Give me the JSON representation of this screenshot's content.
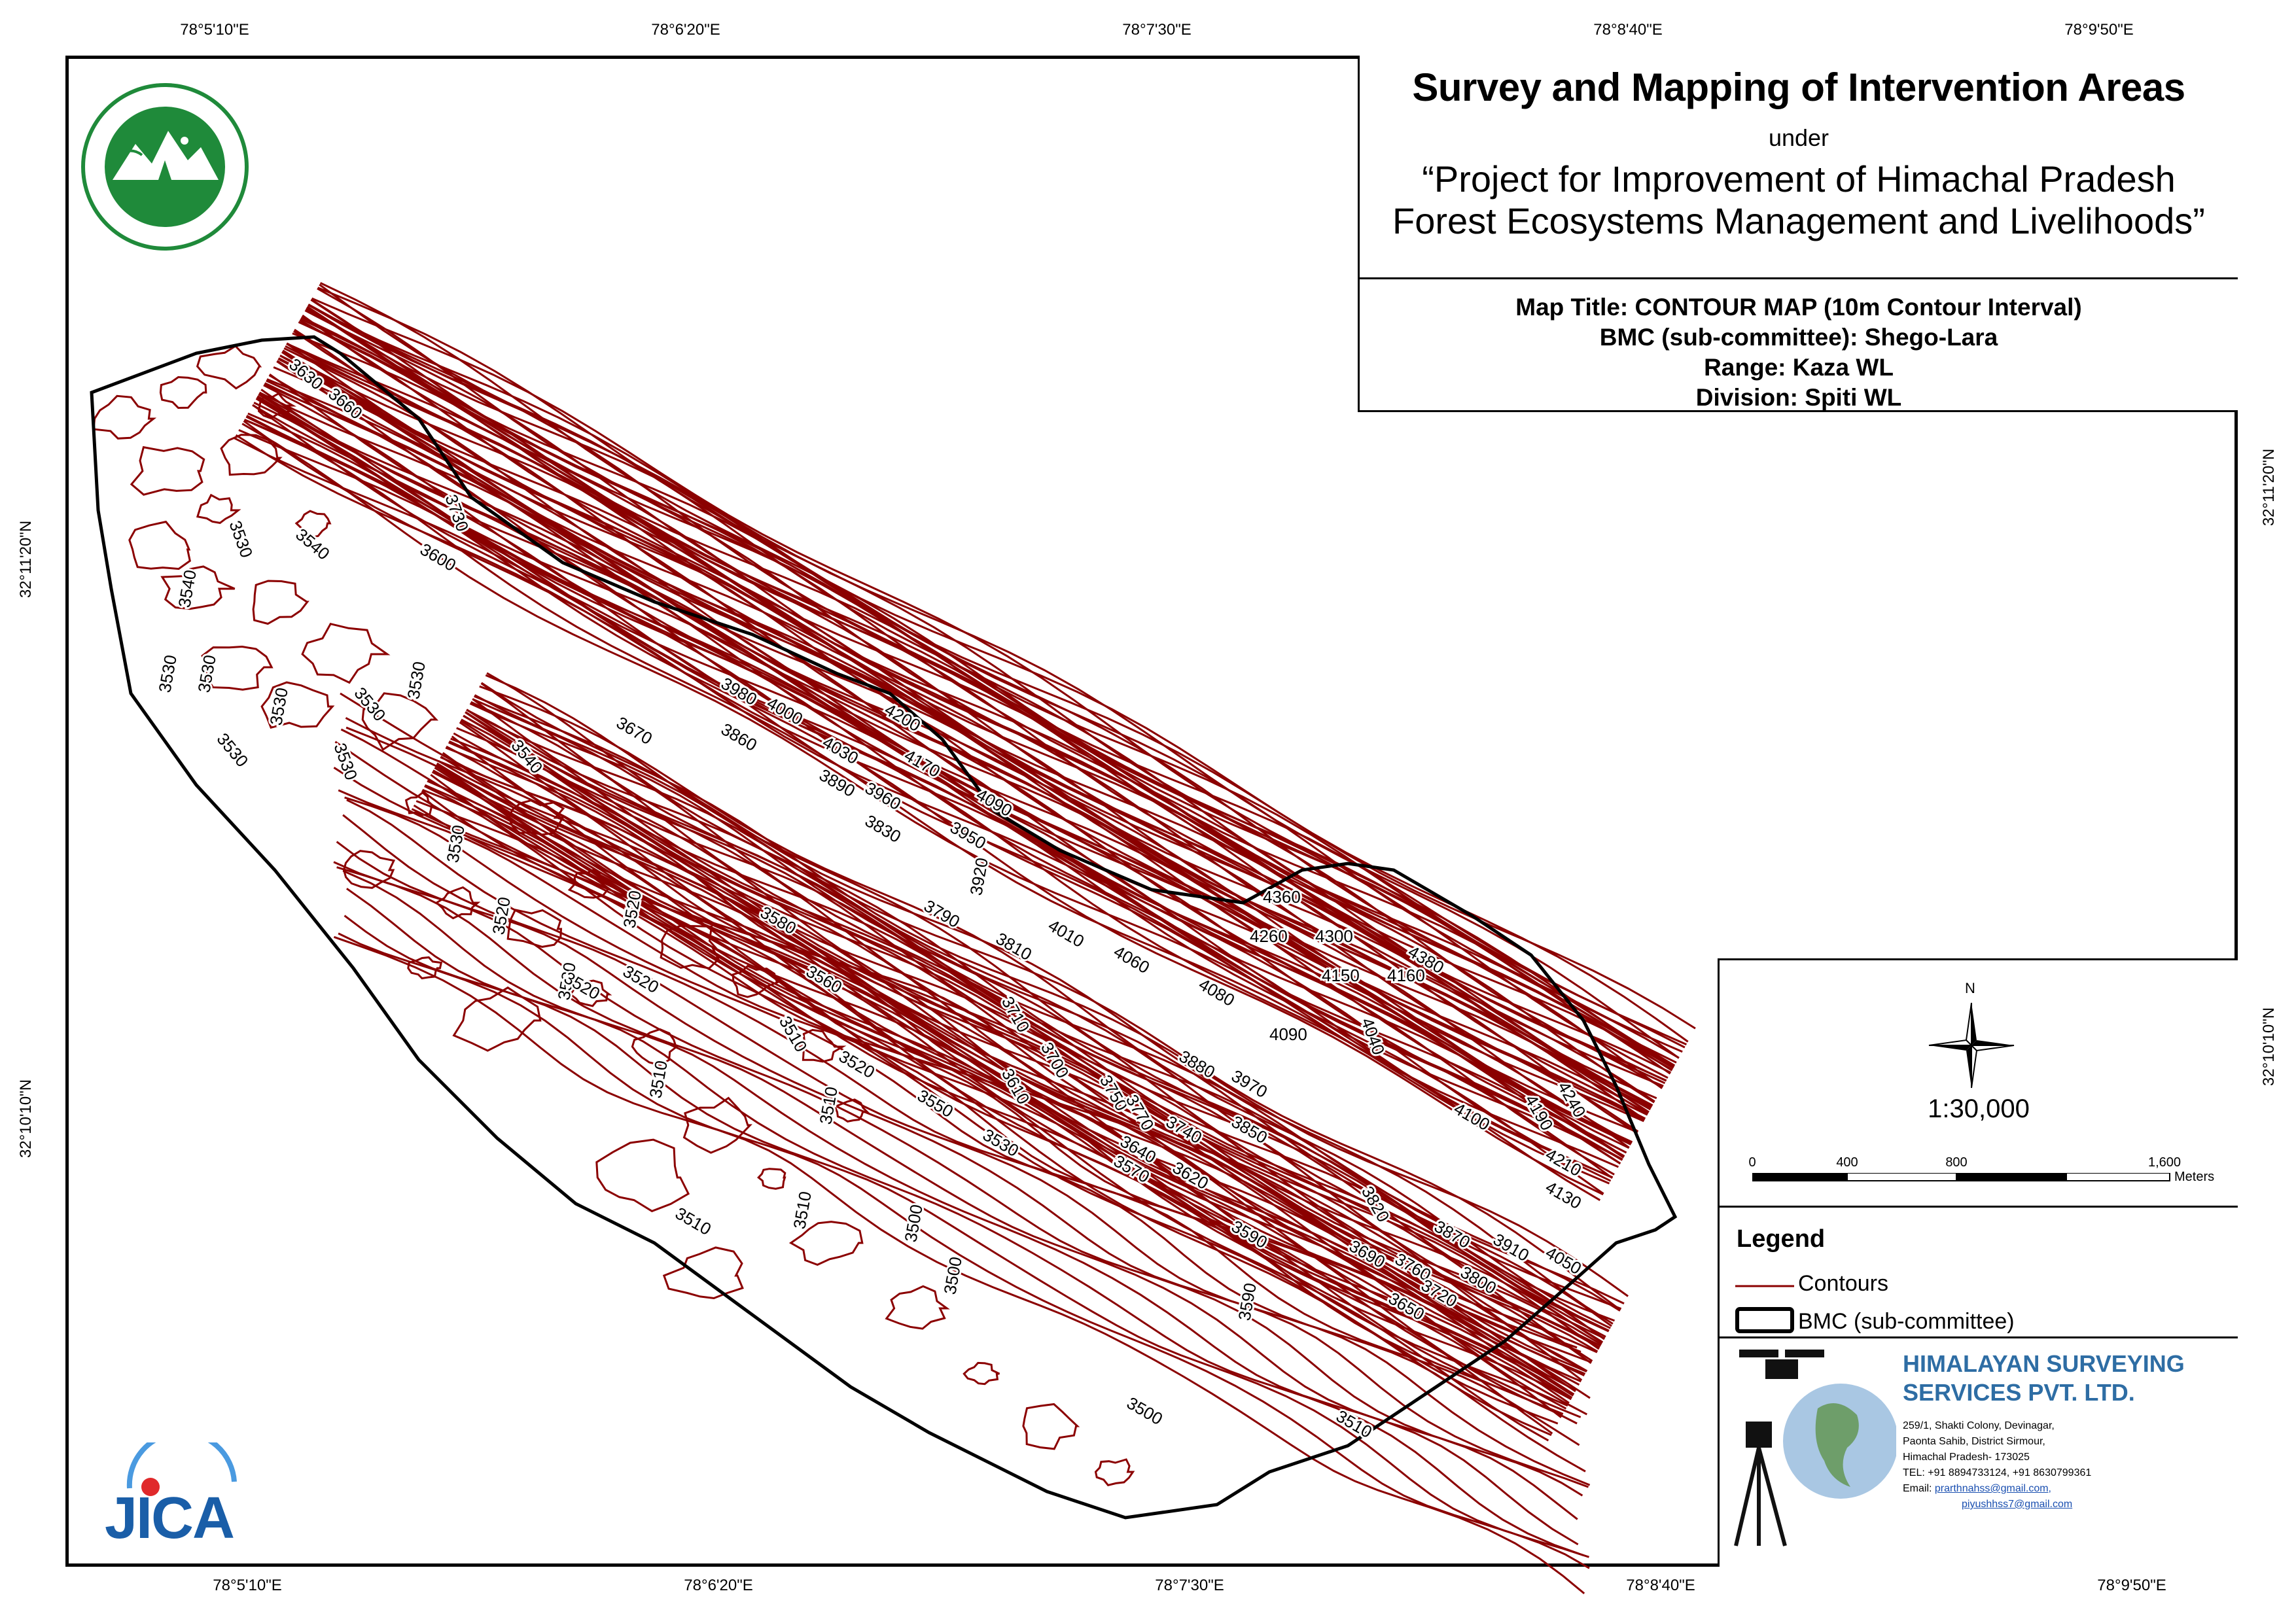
{
  "graticule": {
    "top": [
      "78°5'10\"E",
      "78°6'20\"E",
      "78°7'30\"E",
      "78°8'40\"E",
      "78°9'50\"E"
    ],
    "bottom": [
      "78°5'10\"E",
      "78°6'20\"E",
      "78°7'30\"E",
      "78°8'40\"E",
      "78°9'50\"E"
    ],
    "left": [
      "32°11'20\"N",
      "32°10'10\"N"
    ],
    "right": [
      "32°11'20\"N",
      "32°10'10\"N"
    ]
  },
  "title": {
    "main": "Survey and Mapping of Intervention Areas",
    "under": "under",
    "project_line1": "“Project for Improvement of Himachal Pradesh",
    "project_line2": "Forest Ecosystems Management and Livelihoods”",
    "map_title": "Map Title: CONTOUR MAP (10m Contour Interval)",
    "bmc": "BMC (sub-committee): Shego-Lara",
    "range": "Range: Kaza WL",
    "division": "Division: Spiti WL"
  },
  "north_label": "N",
  "scale": {
    "ratio": "1:30,000",
    "labels": [
      "0",
      "400",
      "800",
      "1,600"
    ],
    "unit": "Meters"
  },
  "legend": {
    "title": "Legend",
    "items": [
      {
        "label": "Contours",
        "color": "#8b0000"
      },
      {
        "label": "BMC (sub-committee)",
        "color": "#000000"
      }
    ]
  },
  "company": {
    "name_line1": "HIMALAYAN SURVEYING",
    "name_line2": "SERVICES PVT. LTD.",
    "address": [
      "259/1, Shakti Colony, Devinagar,",
      "Paonta Sahib, District Sirmour,",
      "Himachal Pradesh- 173025",
      "TEL: +91 8894733124, +91 8630799361"
    ],
    "email_label": "Email:",
    "emails": [
      "prarthnahss@gmail.com,",
      "piyushhss7@gmail.com"
    ]
  },
  "jica_logo_text": "JICA",
  "contour_labels": [
    "3630",
    "3660",
    "3730",
    "3600",
    "3530",
    "3540",
    "3540",
    "3530",
    "3530",
    "3530",
    "3530",
    "3530",
    "3530",
    "3530",
    "3540",
    "3670",
    "3980",
    "4000",
    "4200",
    "3860",
    "4030",
    "4170",
    "3890",
    "3960",
    "4090",
    "3830",
    "3950",
    "3530",
    "3920",
    "3790",
    "3810",
    "4010",
    "4060",
    "4360",
    "4260",
    "4300",
    "4380",
    "4150",
    "4160",
    "4040",
    "4080",
    "4090",
    "3580",
    "3560",
    "3520",
    "3520",
    "3520",
    "3520",
    "3520",
    "3510",
    "3710",
    "3700",
    "3610",
    "3750",
    "3770",
    "3880",
    "3970",
    "3740",
    "3850",
    "3520",
    "3550",
    "3510",
    "3510",
    "3640",
    "3620",
    "3570",
    "3530",
    "4100",
    "4190",
    "4240",
    "3820",
    "4210",
    "4130",
    "3590",
    "3690",
    "3760",
    "3870",
    "3910",
    "4050",
    "3800",
    "3720",
    "3650",
    "3510",
    "3510",
    "3500",
    "3500",
    "3590",
    "3500",
    "3510"
  ],
  "colors": {
    "contour": "#8b0000",
    "boundary": "#000000",
    "company": "#2e6da4"
  }
}
